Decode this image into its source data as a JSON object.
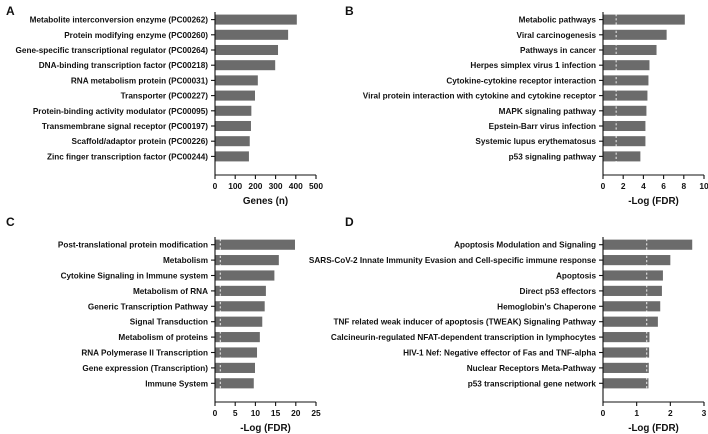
{
  "chart_data": [
    {
      "panel": "A",
      "type": "bar",
      "orientation": "horizontal",
      "categories": [
        "Metabolite interconversion enzyme (PC00262)",
        "Protein modifying enzyme (PC00260)",
        "Gene-specific transcriptional regulator (PC00264)",
        "DNA-binding transcription factor (PC00218)",
        "RNA metabolism protein (PC00031)",
        "Transporter (PC00227)",
        "Protein-binding activity modulator (PC00095)",
        "Transmembrane signal receptor (PC00197)",
        "Scaffold/adaptor protein (PC00226)",
        "Zinc finger transcription factor (PC00244)"
      ],
      "values": [
        405,
        362,
        312,
        298,
        212,
        198,
        180,
        178,
        172,
        168
      ],
      "xlabel": "Genes (n)",
      "xlim": [
        0,
        500
      ],
      "xticks": [
        0,
        100,
        200,
        300,
        400,
        500
      ],
      "reference_line": null
    },
    {
      "panel": "B",
      "type": "bar",
      "orientation": "horizontal",
      "categories": [
        "Metabolic pathways",
        "Viral carcinogenesis",
        "Pathways in cancer",
        "Herpes simplex virus 1 infection",
        "Cytokine-cytokine receptor interaction",
        "Viral protein interaction with cytokine and cytokine receptor",
        "MAPK signaling pathway",
        "Epstein-Barr virus infection",
        "Systemic lupus erythematosus",
        "p53 signaling pathway"
      ],
      "values": [
        8.1,
        6.3,
        5.3,
        4.6,
        4.5,
        4.4,
        4.3,
        4.2,
        4.2,
        3.7
      ],
      "xlabel": "-Log (FDR)",
      "xlim": [
        0,
        10
      ],
      "xticks": [
        0,
        2,
        4,
        6,
        8,
        10
      ],
      "reference_line": 1.3
    },
    {
      "panel": "C",
      "type": "bar",
      "orientation": "horizontal",
      "categories": [
        "Post-translational protein modification",
        "Metabolism",
        "Cytokine Signaling in Immune system",
        "Metabolism of RNA",
        "Generic Transcription Pathway",
        "Signal Transduction",
        "Metabolism of proteins",
        "RNA Polymerase II Transcription",
        "Gene expression (Transcription)",
        "Immune System"
      ],
      "values": [
        19.8,
        15.8,
        14.7,
        12.6,
        12.3,
        11.7,
        11.1,
        10.4,
        9.9,
        9.6
      ],
      "xlabel": "-Log (FDR)",
      "xlim": [
        0,
        25
      ],
      "xticks": [
        0,
        5,
        10,
        15,
        20,
        25
      ],
      "reference_line": 1.3
    },
    {
      "panel": "D",
      "type": "bar",
      "orientation": "horizontal",
      "categories": [
        "Apoptosis Modulation and Signaling",
        "SARS-CoV-2 Innate Immunity Evasion and Cell-specific immune response",
        "Apoptosis",
        "Direct p53 effectors",
        "Hemoglobin's Chaperone",
        "TNF related weak inducer of apoptosis (TWEAK) Signaling Pathway",
        "Calcineurin-regulated NFAT-dependent transcription in lymphocytes",
        "HIV-1 Nef: Negative effector of Fas and TNF-alpha",
        "Nuclear Receptors Meta-Pathway",
        "p53 transcriptional gene network"
      ],
      "values": [
        2.65,
        2.0,
        1.78,
        1.75,
        1.7,
        1.63,
        1.38,
        1.37,
        1.36,
        1.35
      ],
      "xlabel": "-Log (FDR)",
      "xlim": [
        0,
        3
      ],
      "xticks": [
        0,
        1,
        2,
        3
      ],
      "reference_line": 1.3
    }
  ]
}
